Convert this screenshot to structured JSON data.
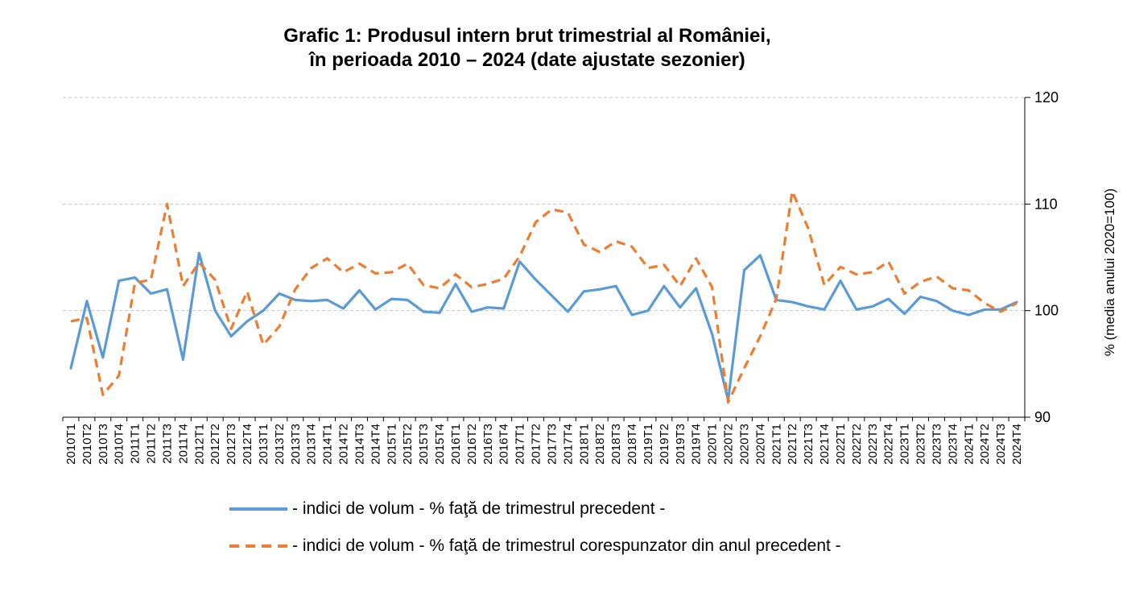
{
  "chart_data": {
    "type": "line",
    "title": [
      "Grafic 1: Produsul intern brut trimestrial al României,",
      "în perioada 2010 – 2024 (date ajustate sezonier)"
    ],
    "ylabel": "% (media anului 2020=100)",
    "y_axis_side": "right",
    "ylim": [
      90,
      120
    ],
    "yticks": [
      90,
      100,
      110,
      120
    ],
    "grid": "horizontal dashed",
    "legend_position": "bottom",
    "categories": [
      "2010T1",
      "2010T2",
      "2010T3",
      "2010T4",
      "2011T1",
      "2011T2",
      "2011T3",
      "2011T4",
      "2012T1",
      "2012T2",
      "2012T3",
      "2012T4",
      "2013T1",
      "2013T2",
      "2013T3",
      "2013T4",
      "2014T1",
      "2014T2",
      "2014T3",
      "2014T4",
      "2015T1",
      "2015T2",
      "2015T3",
      "2015T4",
      "2016T1",
      "2016T2",
      "2016T3",
      "2016T4",
      "2017T1",
      "2017T2",
      "2017T3",
      "2017T4",
      "2018T1",
      "2018T2",
      "2018T3",
      "2018T4",
      "2019T1",
      "2019T2",
      "2019T3",
      "2019T4",
      "2020T1",
      "2020T2",
      "2020T3",
      "2020T4",
      "2021T1",
      "2021T2",
      "2021T3",
      "2021T4",
      "2022T1",
      "2022T2",
      "2022T3",
      "2022T4",
      "2023T1",
      "2023T2",
      "2023T3",
      "2023T4",
      "2024T1",
      "2024T2",
      "2024T3",
      "2024T4"
    ],
    "series": [
      {
        "name": "- indici de volum - % faţă de trimestrul precedent -",
        "color": "#5B9BD5",
        "style": "solid",
        "values": [
          94.6,
          100.9,
          95.6,
          102.8,
          103.1,
          101.6,
          102.0,
          95.4,
          105.4,
          100.0,
          97.6,
          99.0,
          100.0,
          101.6,
          101.0,
          100.9,
          101.0,
          100.2,
          101.9,
          100.1,
          101.1,
          101.0,
          99.9,
          99.8,
          102.5,
          99.9,
          100.3,
          100.2,
          104.6,
          102.9,
          101.4,
          99.9,
          101.8,
          102.0,
          102.3,
          99.6,
          100.0,
          102.3,
          100.3,
          102.1,
          97.8,
          91.6,
          103.8,
          105.2,
          101.0,
          100.8,
          100.4,
          100.1,
          102.8,
          100.1,
          100.4,
          101.1,
          99.7,
          101.3,
          100.9,
          100.0,
          99.6,
          100.1,
          100.1,
          100.8
        ]
      },
      {
        "name": "- indici de volum - % faţă de trimestrul corespunzator din anul precedent -",
        "color": "#ED7D31",
        "style": "dashed",
        "values": [
          99.0,
          99.3,
          92.1,
          93.9,
          102.6,
          102.9,
          110.0,
          102.3,
          104.5,
          102.9,
          98.3,
          101.8,
          96.8,
          98.5,
          102.0,
          104.0,
          104.9,
          103.6,
          104.4,
          103.5,
          103.6,
          104.4,
          102.4,
          102.1,
          103.4,
          102.2,
          102.5,
          103.0,
          105.1,
          108.3,
          109.5,
          109.2,
          106.2,
          105.5,
          106.5,
          106.0,
          104.0,
          104.3,
          102.3,
          104.9,
          102.2,
          91.4,
          94.6,
          97.6,
          101.1,
          111.2,
          107.7,
          102.4,
          104.1,
          103.4,
          103.6,
          104.6,
          101.6,
          102.7,
          103.2,
          102.1,
          101.9,
          100.7,
          99.9,
          100.7
        ]
      }
    ]
  }
}
